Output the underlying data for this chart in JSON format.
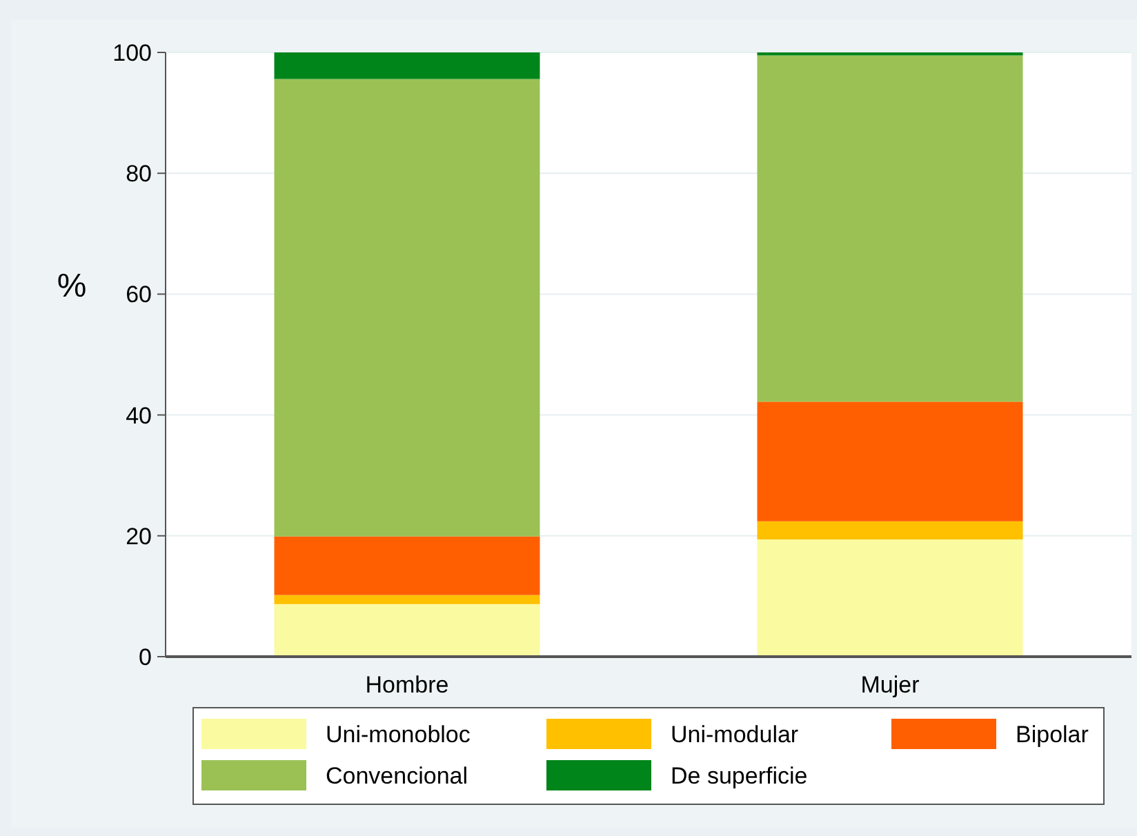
{
  "chart_data": {
    "type": "bar",
    "stacked": true,
    "ylabel": "%",
    "categories": [
      "Hombre",
      "Mujer"
    ],
    "series": [
      {
        "name": "Uni-monobloc",
        "color": "#fafaa0",
        "values": [
          8.7,
          19.4
        ]
      },
      {
        "name": "Uni-modular",
        "color": "#ffc000",
        "values": [
          1.5,
          3.0
        ]
      },
      {
        "name": "Bipolar",
        "color": "#ff5f00",
        "values": [
          9.7,
          19.8
        ]
      },
      {
        "name": "Convencional",
        "color": "#9bc155",
        "values": [
          75.7,
          57.3
        ]
      },
      {
        "name": "De superficie",
        "color": "#00851a",
        "values": [
          4.4,
          0.5
        ]
      }
    ],
    "ylim": [
      0,
      100
    ],
    "yticks": [
      0,
      20,
      40,
      60,
      80,
      100
    ],
    "grid": "y",
    "legend": "bottom"
  }
}
